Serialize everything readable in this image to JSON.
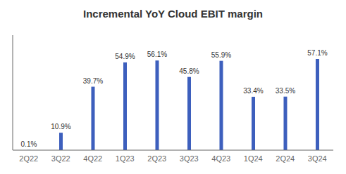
{
  "chart_data": {
    "type": "bar",
    "title": "Incremental YoY Cloud EBIT margin",
    "categories": [
      "2Q22",
      "3Q22",
      "4Q22",
      "1Q23",
      "2Q23",
      "3Q23",
      "4Q23",
      "1Q24",
      "2Q24",
      "3Q24"
    ],
    "values": [
      0.1,
      10.9,
      39.7,
      54.9,
      56.1,
      45.8,
      55.9,
      33.4,
      33.5,
      57.1
    ],
    "value_labels": [
      "0.1%",
      "10.9%",
      "39.7%",
      "54.9%",
      "56.1%",
      "45.8%",
      "55.9%",
      "33.4%",
      "33.5%",
      "57.1%"
    ],
    "color": "#3d5fbd",
    "ylim": [
      0,
      72
    ],
    "grid": false,
    "data_labels": true,
    "tick_labels": "x"
  }
}
